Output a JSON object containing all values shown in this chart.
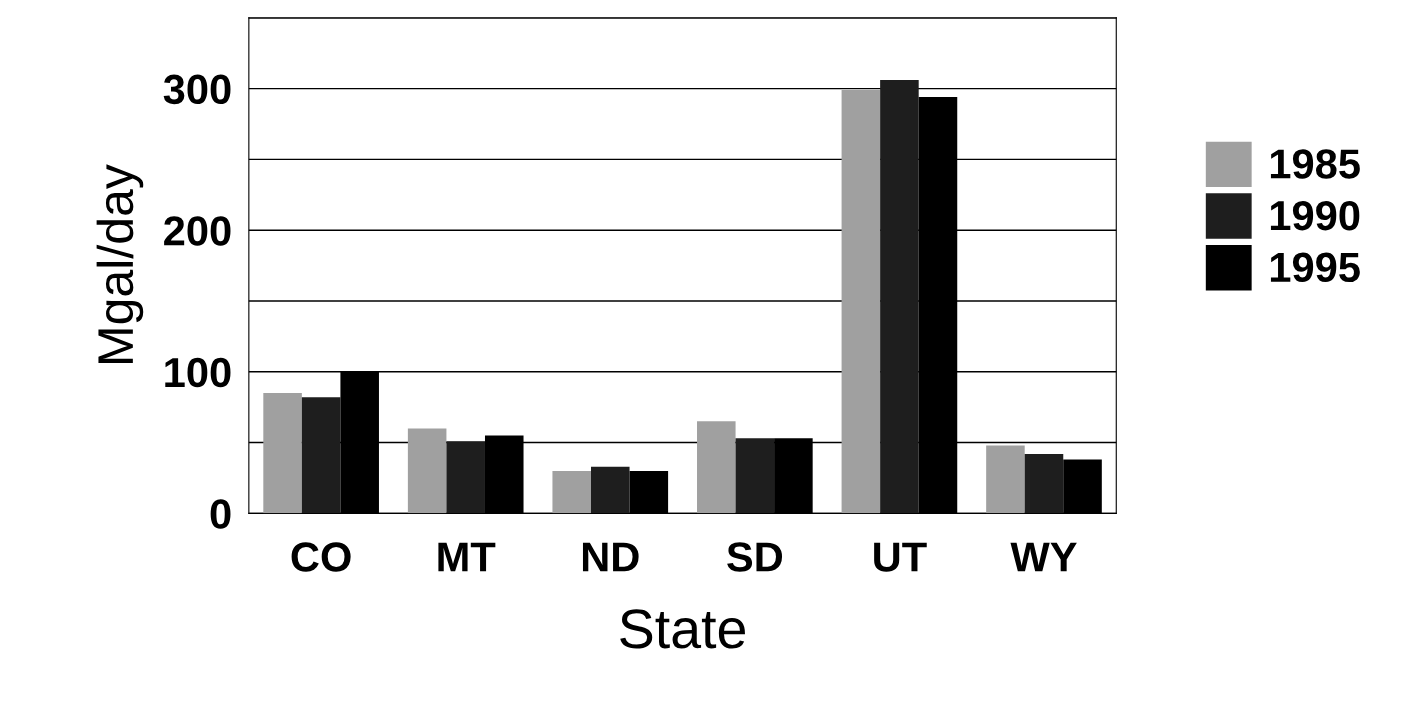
{
  "chart_data": {
    "type": "bar",
    "xlabel": "State",
    "ylabel": "Mgal/day",
    "categories": [
      "CO",
      "MT",
      "ND",
      "SD",
      "UT",
      "WY"
    ],
    "series": [
      {
        "name": "1985",
        "color": "#a0a0a0",
        "values": [
          85,
          60,
          30,
          65,
          299,
          48
        ]
      },
      {
        "name": "1990",
        "color": "#1e1e1e",
        "values": [
          82,
          51,
          33,
          53,
          306,
          42
        ]
      },
      {
        "name": "1995",
        "color": "#000000",
        "values": [
          100,
          55,
          30,
          53,
          294,
          38
        ]
      }
    ],
    "ylim": [
      0,
      350
    ],
    "yticks": [
      0,
      {
        "value": 50,
        "label": null
      },
      100,
      {
        "value": 150,
        "label": null
      },
      200,
      {
        "value": 250,
        "label": null
      },
      300,
      {
        "value": 350,
        "label": null
      }
    ],
    "grid": "y",
    "legend": "right"
  }
}
